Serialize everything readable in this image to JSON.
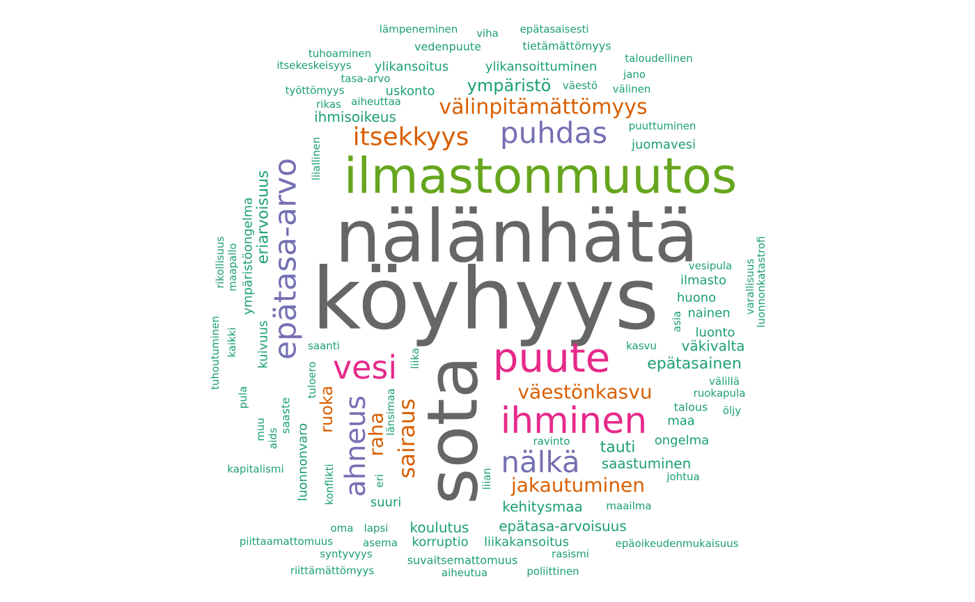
{
  "chart_data": {
    "type": "wordcloud",
    "palette": {
      "grey": "#666666",
      "green": "#66a61e",
      "pink": "#e7298a",
      "purple": "#7570b3",
      "orange": "#d95f02",
      "teal": "#1b9e77"
    },
    "words": [
      {
        "text": "köyhyys",
        "color": "grey"
      },
      {
        "text": "nälänhätä",
        "color": "grey"
      },
      {
        "text": "sota",
        "color": "grey"
      },
      {
        "text": "ilmastonmuutos",
        "color": "green"
      },
      {
        "text": "puute",
        "color": "pink"
      },
      {
        "text": "ihminen",
        "color": "pink"
      },
      {
        "text": "vesi",
        "color": "pink"
      },
      {
        "text": "epätasa-arvo",
        "color": "purple"
      },
      {
        "text": "puhdas",
        "color": "purple"
      },
      {
        "text": "nälkä",
        "color": "purple"
      },
      {
        "text": "ahneus",
        "color": "purple"
      },
      {
        "text": "itsekkyys",
        "color": "orange"
      },
      {
        "text": "välinpitämättömyys",
        "color": "orange"
      },
      {
        "text": "väestönkasvu",
        "color": "orange"
      },
      {
        "text": "jakautuminen",
        "color": "orange"
      },
      {
        "text": "sairaus",
        "color": "orange"
      },
      {
        "text": "raha",
        "color": "orange"
      },
      {
        "text": "ruoka",
        "color": "orange"
      },
      {
        "text": "ympäristö",
        "color": "teal"
      },
      {
        "text": "epätasainen",
        "color": "teal"
      },
      {
        "text": "eriarvoisuus",
        "color": "teal"
      },
      {
        "text": "tauti",
        "color": "teal"
      },
      {
        "text": "kehitysmaa",
        "color": "teal"
      },
      {
        "text": "saastuminen",
        "color": "teal"
      },
      {
        "text": "väkivalta",
        "color": "teal"
      },
      {
        "text": "ihmisoikeus",
        "color": "teal"
      },
      {
        "text": "ylikansoittuminen",
        "color": "teal"
      },
      {
        "text": "ympäristöongelma",
        "color": "teal"
      },
      {
        "text": "koulutus",
        "color": "teal"
      },
      {
        "text": "epätasa-arvoisuus",
        "color": "teal"
      },
      {
        "text": "ongelma",
        "color": "teal"
      },
      {
        "text": "ilmasto",
        "color": "teal"
      },
      {
        "text": "huono",
        "color": "teal"
      },
      {
        "text": "nainen",
        "color": "teal"
      },
      {
        "text": "luonto",
        "color": "teal"
      },
      {
        "text": "juomavesi",
        "color": "teal"
      },
      {
        "text": "ylikansoitus",
        "color": "teal"
      },
      {
        "text": "uskonto",
        "color": "teal"
      },
      {
        "text": "vedenpuute",
        "color": "teal"
      },
      {
        "text": "tietämättömyys",
        "color": "teal"
      },
      {
        "text": "maa",
        "color": "teal"
      },
      {
        "text": "suuri",
        "color": "teal"
      },
      {
        "text": "korruptio",
        "color": "teal"
      },
      {
        "text": "liikakansoitus",
        "color": "teal"
      },
      {
        "text": "suvaitsemattomuus",
        "color": "teal"
      },
      {
        "text": "luonnonvaro",
        "color": "teal"
      },
      {
        "text": "kuivuus",
        "color": "teal"
      },
      {
        "text": "saaste",
        "color": "teal"
      },
      {
        "text": "talous",
        "color": "teal"
      },
      {
        "text": "ravinto",
        "color": "teal"
      },
      {
        "text": "vesipula",
        "color": "teal"
      },
      {
        "text": "maapallo",
        "color": "teal"
      },
      {
        "text": "rikollisuus",
        "color": "teal"
      },
      {
        "text": "tuhoutuminen",
        "color": "teal"
      },
      {
        "text": "kaikki",
        "color": "teal"
      },
      {
        "text": "pula",
        "color": "teal"
      },
      {
        "text": "muu",
        "color": "teal"
      },
      {
        "text": "aids",
        "color": "teal"
      },
      {
        "text": "kapitalismi",
        "color": "teal"
      },
      {
        "text": "konflikti",
        "color": "teal"
      },
      {
        "text": "tuloero",
        "color": "teal"
      },
      {
        "text": "saanti",
        "color": "teal"
      },
      {
        "text": "liiallinen",
        "color": "teal"
      },
      {
        "text": "länsimaa",
        "color": "teal"
      },
      {
        "text": "liika",
        "color": "teal"
      },
      {
        "text": "eri",
        "color": "teal"
      },
      {
        "text": "liian",
        "color": "teal"
      },
      {
        "text": "kasvu",
        "color": "teal"
      },
      {
        "text": "välillä",
        "color": "teal"
      },
      {
        "text": "ruokapula",
        "color": "teal"
      },
      {
        "text": "öljy",
        "color": "teal"
      },
      {
        "text": "johtua",
        "color": "teal"
      },
      {
        "text": "maailma",
        "color": "teal"
      },
      {
        "text": "rasismi",
        "color": "teal"
      },
      {
        "text": "poliittinen",
        "color": "teal"
      },
      {
        "text": "aiheutua",
        "color": "teal"
      },
      {
        "text": "riittämättömyys",
        "color": "teal"
      },
      {
        "text": "syntyvyys",
        "color": "teal"
      },
      {
        "text": "piittaamattomuus",
        "color": "teal"
      },
      {
        "text": "asema",
        "color": "teal"
      },
      {
        "text": "oma",
        "color": "teal"
      },
      {
        "text": "lapsi",
        "color": "teal"
      },
      {
        "text": "epäoikeudenmukaisuus",
        "color": "teal"
      },
      {
        "text": "puuttuminen",
        "color": "teal"
      },
      {
        "text": "väestö",
        "color": "teal"
      },
      {
        "text": "välinen",
        "color": "teal"
      },
      {
        "text": "jano",
        "color": "teal"
      },
      {
        "text": "taloudellinen",
        "color": "teal"
      },
      {
        "text": "tasa-arvo",
        "color": "teal"
      },
      {
        "text": "työttömyys",
        "color": "teal"
      },
      {
        "text": "aiheuttaa",
        "color": "teal"
      },
      {
        "text": "rikas",
        "color": "teal"
      },
      {
        "text": "itsekeskeisyys",
        "color": "teal"
      },
      {
        "text": "tuhoaminen",
        "color": "teal"
      },
      {
        "text": "lämpeneminen",
        "color": "teal"
      },
      {
        "text": "viha",
        "color": "teal"
      },
      {
        "text": "epätasaisesti",
        "color": "teal"
      },
      {
        "text": "varallisuus",
        "color": "teal"
      },
      {
        "text": "luonnonkatastrofi",
        "color": "teal"
      },
      {
        "text": "asia",
        "color": "teal"
      }
    ]
  }
}
